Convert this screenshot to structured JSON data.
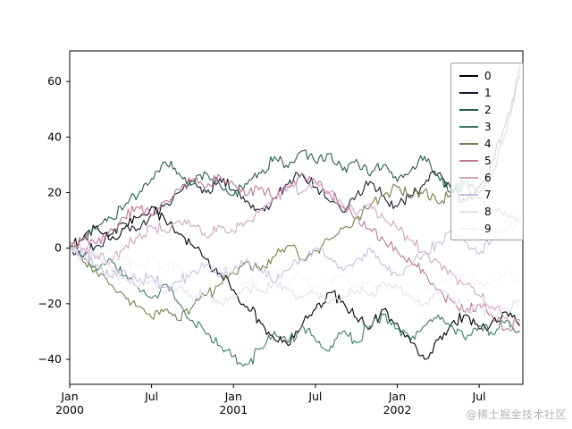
{
  "watermark": "@稀土掘金技术社区",
  "chart_data": {
    "type": "line",
    "title": "",
    "xlabel": "",
    "ylabel": "",
    "x_unit": "months since Jan 2000",
    "xlim_months": [
      0,
      33.2
    ],
    "ylim": [
      -49,
      71
    ],
    "grid": false,
    "legend_position": "upper right",
    "y_ticks": [
      -40,
      -20,
      0,
      20,
      40,
      60
    ],
    "x_ticks": [
      {
        "m": 0,
        "label": "Jan",
        "year": "2000"
      },
      {
        "m": 6,
        "label": "Jul",
        "year": ""
      },
      {
        "m": 12,
        "label": "Jan",
        "year": "2001"
      },
      {
        "m": 18,
        "label": "Jul",
        "year": ""
      },
      {
        "m": 24,
        "label": "Jan",
        "year": "2002"
      },
      {
        "m": 30,
        "label": "Jul",
        "year": ""
      }
    ],
    "series": [
      {
        "name": "0",
        "color": "#000000",
        "values": [
          0,
          4,
          8,
          3,
          7,
          11,
          15,
          10,
          5,
          1,
          -4,
          -9,
          -15,
          -21,
          -27,
          -33,
          -35,
          -28,
          -22,
          -16,
          -19,
          -25,
          -29,
          -22,
          -27,
          -34,
          -40,
          -33,
          -27,
          -24,
          -29,
          -26,
          -23,
          -28
        ]
      },
      {
        "name": "1",
        "color": "#151b2e",
        "values": [
          0,
          -3,
          1,
          5,
          9,
          7,
          12,
          16,
          20,
          24,
          20,
          25,
          21,
          17,
          14,
          18,
          23,
          27,
          22,
          17,
          13,
          19,
          24,
          19,
          15,
          19,
          23,
          27,
          21,
          17,
          22,
          31,
          46,
          62
        ]
      },
      {
        "name": "2",
        "color": "#275d4b",
        "values": [
          0,
          3,
          7,
          11,
          15,
          19,
          25,
          31,
          27,
          23,
          27,
          23,
          19,
          23,
          27,
          33,
          29,
          35,
          31,
          34,
          28,
          32,
          26,
          30,
          24,
          28,
          33,
          26,
          20,
          24,
          20,
          27,
          42,
          66
        ]
      },
      {
        "name": "3",
        "color": "#417c62",
        "values": [
          0,
          -4,
          -8,
          -4,
          -10,
          -14,
          -18,
          -13,
          -20,
          -26,
          -31,
          -35,
          -39,
          -42,
          -36,
          -30,
          -34,
          -28,
          -33,
          -37,
          -30,
          -34,
          -28,
          -24,
          -29,
          -33,
          -28,
          -24,
          -28,
          -33,
          -28,
          -31,
          -26,
          -30
        ]
      },
      {
        "name": "4",
        "color": "#787f4b",
        "values": [
          0,
          -5,
          -9,
          -13,
          -17,
          -21,
          -25,
          -22,
          -26,
          -21,
          -17,
          -13,
          -9,
          -5,
          -8,
          -3,
          1,
          -4,
          -1,
          3,
          7,
          11,
          15,
          19,
          22,
          18,
          21,
          16,
          20,
          23,
          18,
          14,
          12,
          10
        ]
      },
      {
        "name": "5",
        "color": "#bc7a93",
        "values": [
          0,
          4,
          2,
          7,
          11,
          15,
          12,
          17,
          21,
          25,
          22,
          26,
          23,
          19,
          22,
          18,
          22,
          27,
          24,
          20,
          15,
          11,
          7,
          3,
          -1,
          -5,
          -9,
          -15,
          -19,
          -23,
          -20,
          -25,
          -29,
          -26
        ]
      },
      {
        "name": "6",
        "color": "#d3a4c0",
        "values": [
          2,
          0,
          -3,
          -5,
          0,
          4,
          8,
          6,
          10,
          8,
          4,
          8,
          6,
          10,
          14,
          18,
          22,
          20,
          24,
          20,
          16,
          12,
          16,
          11,
          7,
          3,
          -1,
          -5,
          -9,
          -13,
          -17,
          -21,
          -25,
          -28
        ]
      },
      {
        "name": "7",
        "color": "#c6c0e0",
        "values": [
          0,
          -2,
          -6,
          -10,
          -8,
          -12,
          -10,
          -14,
          -12,
          -8,
          -6,
          -10,
          -8,
          -4,
          -8,
          -12,
          -8,
          -4,
          0,
          -4,
          -8,
          -4,
          0,
          -6,
          -10,
          -6,
          -2,
          2,
          6,
          2,
          -2,
          3,
          7,
          10
        ]
      },
      {
        "name": "8",
        "color": "#e2deef",
        "values": [
          0,
          -4,
          -2,
          -7,
          -11,
          -14,
          -12,
          -16,
          -14,
          -18,
          -16,
          -20,
          -18,
          -14,
          -16,
          -12,
          -14,
          -18,
          -16,
          -20,
          -18,
          -15,
          -17,
          -12,
          -14,
          -18,
          -20,
          -16,
          -18,
          -22,
          -20,
          -24,
          -22,
          -19
        ]
      },
      {
        "name": "9",
        "color": "#f5f3fa",
        "values": [
          0,
          2,
          -2,
          0,
          -4,
          -7,
          -4,
          -8,
          -6,
          -10,
          -8,
          -6,
          -10,
          -13,
          -10,
          -8,
          -12,
          -10,
          -14,
          -12,
          -10,
          -14,
          -12,
          -16,
          -14,
          -12,
          -16,
          -13,
          -11,
          -9,
          -13,
          -11,
          -9,
          -12
        ]
      }
    ]
  }
}
